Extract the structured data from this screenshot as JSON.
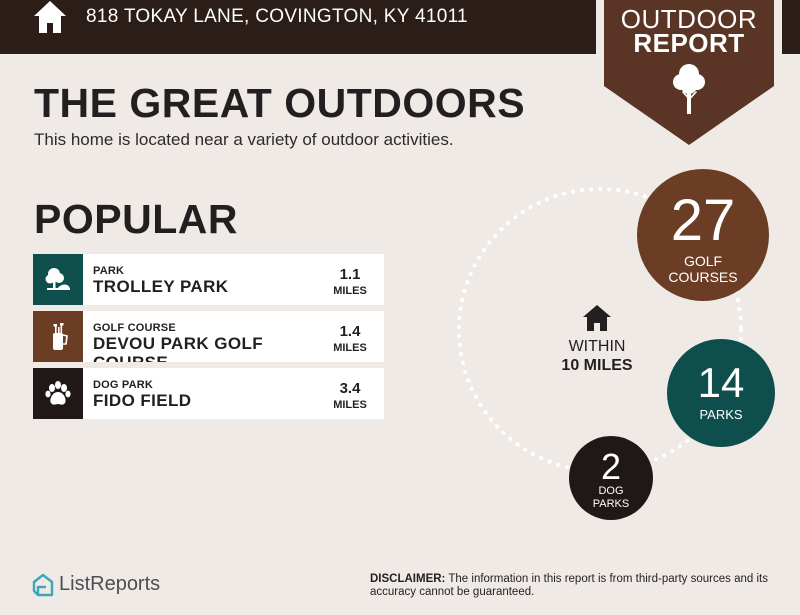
{
  "header": {
    "address": "818 TOKAY LANE, COVINGTON, KY 41011",
    "icon": "house-icon",
    "background": "#2b1d17"
  },
  "badge": {
    "line1": "OUTDOOR",
    "line2": "REPORT",
    "icon": "tree-icon",
    "color": "#5a3424"
  },
  "hero": {
    "title": "THE GREAT OUTDOORS",
    "subtitle": "This home is located near a variety of outdoor activities."
  },
  "popular": {
    "title": "POPULAR",
    "items": [
      {
        "category": "PARK",
        "name": "TROLLEY PARK",
        "distance": "1.1",
        "unit": "MILES",
        "icon": "park-icon",
        "color": "#0e4f4d"
      },
      {
        "category": "GOLF COURSE",
        "name": "DEVOU PARK GOLF COURSE",
        "distance": "1.4",
        "unit": "MILES",
        "icon": "golf-bag-icon",
        "color": "#6b3d24"
      },
      {
        "category": "DOG PARK",
        "name": "FIDO FIELD",
        "distance": "3.4",
        "unit": "MILES",
        "icon": "paw-icon",
        "color": "#1f1816"
      }
    ]
  },
  "summary": {
    "center_icon": "house-icon",
    "within_line1": "WITHIN",
    "within_line2": "10 MILES",
    "golf": {
      "count": "27",
      "label_line1": "GOLF",
      "label_line2": "COURSES",
      "color": "#6b3d24"
    },
    "parks": {
      "count": "14",
      "label": "PARKS",
      "color": "#0e4f4d"
    },
    "dog": {
      "count": "2",
      "label_line1": "DOG",
      "label_line2": "PARKS",
      "color": "#1f1816"
    }
  },
  "footer": {
    "logo_text": "ListReports",
    "logo_icon": "listreports-logo-icon",
    "disclaimer_label": "DISCLAIMER:",
    "disclaimer_text": " The information in this report is from third-party sources and its accuracy cannot be guaranteed."
  }
}
